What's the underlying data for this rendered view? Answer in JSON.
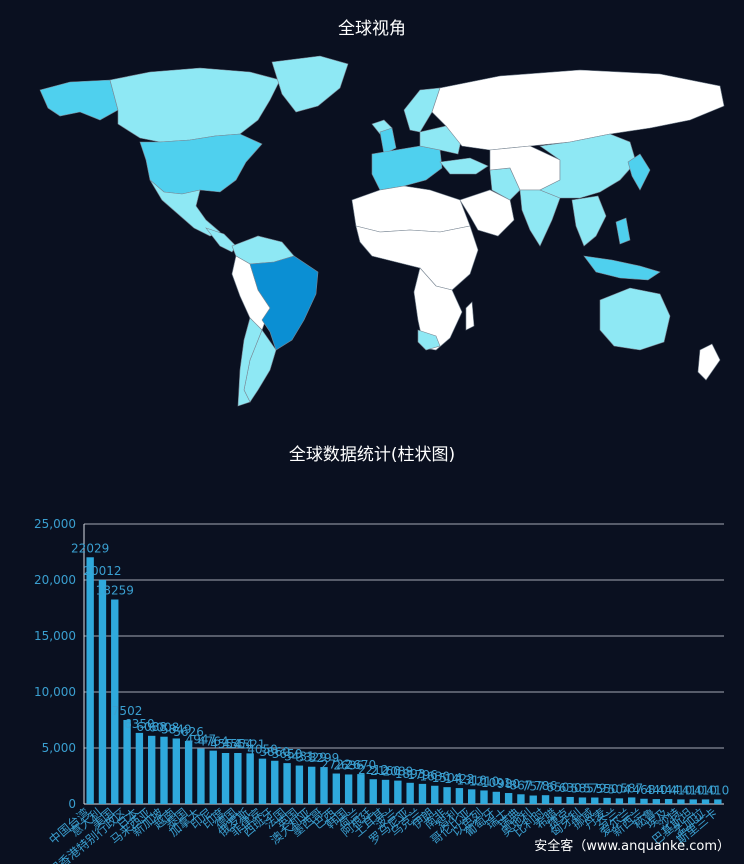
{
  "map": {
    "title": "全球视角",
    "colors": {
      "none": "#ffffff",
      "low": "#8ee8f4",
      "mid": "#4fd0ee",
      "high": "#0b8fd3",
      "border": "#7a8794"
    }
  },
  "chart": {
    "title": "全球数据统计(柱状图)"
  },
  "watermark": "安全客（www.anquanke.com）",
  "chart_data": {
    "type": "bar",
    "title": "全球数据统计(柱状图)",
    "ylim": [
      0,
      25000
    ],
    "yticks": [
      "0",
      "5,000",
      "10,000",
      "15,000",
      "20,000",
      "25,000"
    ],
    "bar_color": "#2fa9dc",
    "label_color": "#3a9fd0",
    "grid": true,
    "categories": [
      "中国台湾",
      "意大利",
      "美国",
      "中国香港特别行政区",
      "日本",
      "马来西亚",
      "新加坡",
      "越南",
      "泰国",
      "加拿大",
      "印尼",
      "印度",
      "德国",
      "俄罗斯",
      "菲律宾",
      "西班牙",
      "法国",
      "英国",
      "澳大利亚",
      "墨西哥",
      "巴西",
      "韩国",
      "荷兰",
      "阿根廷",
      "土耳其",
      "波兰",
      "罗马尼亚",
      "乌克兰",
      "伊朗",
      "南非",
      "智利",
      "哥伦比亚",
      "以色列",
      "葡萄牙",
      "瑞士",
      "瑞典",
      "奥地利",
      "比利时",
      "希腊",
      "捷克",
      "匈牙利",
      "挪威",
      "丹麦",
      "芬兰",
      "爱尔兰",
      "新西兰",
      "秘鲁",
      "埃及",
      "沙特",
      "巴基斯坦",
      "孟加拉",
      "斯里兰卡"
    ],
    "values": [
      22029,
      20012,
      18259,
      7502,
      6350,
      6088,
      6008,
      5849,
      5626,
      4947,
      4764,
      4554,
      4554,
      4521,
      4050,
      3860,
      3650,
      3431,
      3329,
      3299,
      2722,
      2636,
      2670,
      2212,
      2160,
      2089,
      1893,
      1796,
      1630,
      1504,
      1422,
      1310,
      1210,
      1091,
      980,
      867,
      757,
      786,
      650,
      630,
      585,
      579,
      550,
      504,
      587,
      468,
      440,
      444,
      410,
      410,
      410,
      410
    ]
  }
}
